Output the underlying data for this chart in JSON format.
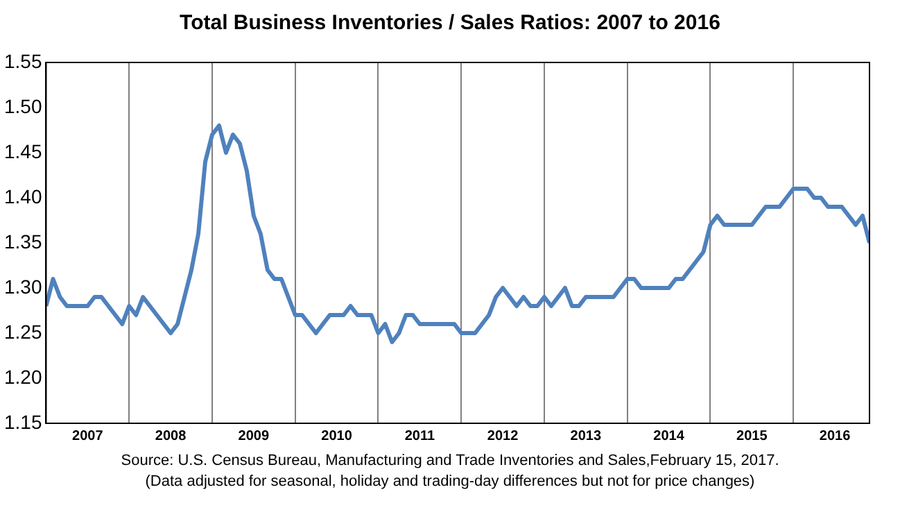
{
  "chart_data": {
    "type": "line",
    "title": "Total Business Inventories / Sales Ratios: 2007 to 2016",
    "annotations": [
      "Source: U.S. Census Bureau, Manufacturing and Trade Inventories and Sales,February 15, 2017.",
      "(Data adjusted for seasonal, holiday and trading-day differences but not for price changes)"
    ],
    "x": [
      "2007-01",
      "2007-02",
      "2007-03",
      "2007-04",
      "2007-05",
      "2007-06",
      "2007-07",
      "2007-08",
      "2007-09",
      "2007-10",
      "2007-11",
      "2007-12",
      "2008-01",
      "2008-02",
      "2008-03",
      "2008-04",
      "2008-05",
      "2008-06",
      "2008-07",
      "2008-08",
      "2008-09",
      "2008-10",
      "2008-11",
      "2008-12",
      "2009-01",
      "2009-02",
      "2009-03",
      "2009-04",
      "2009-05",
      "2009-06",
      "2009-07",
      "2009-08",
      "2009-09",
      "2009-10",
      "2009-11",
      "2009-12",
      "2010-01",
      "2010-02",
      "2010-03",
      "2010-04",
      "2010-05",
      "2010-06",
      "2010-07",
      "2010-08",
      "2010-09",
      "2010-10",
      "2010-11",
      "2010-12",
      "2011-01",
      "2011-02",
      "2011-03",
      "2011-04",
      "2011-05",
      "2011-06",
      "2011-07",
      "2011-08",
      "2011-09",
      "2011-10",
      "2011-11",
      "2011-12",
      "2012-01",
      "2012-02",
      "2012-03",
      "2012-04",
      "2012-05",
      "2012-06",
      "2012-07",
      "2012-08",
      "2012-09",
      "2012-10",
      "2012-11",
      "2012-12",
      "2013-01",
      "2013-02",
      "2013-03",
      "2013-04",
      "2013-05",
      "2013-06",
      "2013-07",
      "2013-08",
      "2013-09",
      "2013-10",
      "2013-11",
      "2013-12",
      "2014-01",
      "2014-02",
      "2014-03",
      "2014-04",
      "2014-05",
      "2014-06",
      "2014-07",
      "2014-08",
      "2014-09",
      "2014-10",
      "2014-11",
      "2014-12",
      "2015-01",
      "2015-02",
      "2015-03",
      "2015-04",
      "2015-05",
      "2015-06",
      "2015-07",
      "2015-08",
      "2015-09",
      "2015-10",
      "2015-11",
      "2015-12",
      "2016-01",
      "2016-02",
      "2016-03",
      "2016-04",
      "2016-05",
      "2016-06",
      "2016-07",
      "2016-08",
      "2016-09",
      "2016-10",
      "2016-11",
      "2016-12"
    ],
    "series": [
      {
        "color": "#4f81bd",
        "values": [
          1.28,
          1.31,
          1.29,
          1.28,
          1.28,
          1.28,
          1.28,
          1.29,
          1.29,
          1.28,
          1.27,
          1.26,
          1.28,
          1.27,
          1.29,
          1.28,
          1.27,
          1.26,
          1.25,
          1.26,
          1.29,
          1.32,
          1.36,
          1.44,
          1.47,
          1.48,
          1.45,
          1.47,
          1.46,
          1.43,
          1.38,
          1.36,
          1.32,
          1.31,
          1.31,
          1.29,
          1.27,
          1.27,
          1.26,
          1.25,
          1.26,
          1.27,
          1.27,
          1.27,
          1.28,
          1.27,
          1.27,
          1.27,
          1.25,
          1.26,
          1.24,
          1.25,
          1.27,
          1.27,
          1.26,
          1.26,
          1.26,
          1.26,
          1.26,
          1.26,
          1.25,
          1.25,
          1.25,
          1.26,
          1.27,
          1.29,
          1.3,
          1.29,
          1.28,
          1.29,
          1.28,
          1.28,
          1.29,
          1.28,
          1.29,
          1.3,
          1.28,
          1.28,
          1.29,
          1.29,
          1.29,
          1.29,
          1.29,
          1.3,
          1.31,
          1.31,
          1.3,
          1.3,
          1.3,
          1.3,
          1.3,
          1.31,
          1.31,
          1.32,
          1.33,
          1.34,
          1.37,
          1.38,
          1.37,
          1.37,
          1.37,
          1.37,
          1.37,
          1.38,
          1.39,
          1.39,
          1.39,
          1.4,
          1.41,
          1.41,
          1.41,
          1.4,
          1.4,
          1.39,
          1.39,
          1.39,
          1.38,
          1.37,
          1.38,
          1.35
        ]
      }
    ],
    "xlim": [
      "2007-01",
      "2016-12"
    ],
    "xticks": [
      {
        "value": "2007-07",
        "label": "2007"
      },
      {
        "value": "2008-01",
        "label": null
      },
      {
        "value": "2008-07",
        "label": "2008"
      },
      {
        "value": "2009-01",
        "label": null
      },
      {
        "value": "2009-07",
        "label": "2009"
      },
      {
        "value": "2010-01",
        "label": null
      },
      {
        "value": "2010-07",
        "label": "2010"
      },
      {
        "value": "2011-01",
        "label": null
      },
      {
        "value": "2011-07",
        "label": "2011"
      },
      {
        "value": "2012-01",
        "label": null
      },
      {
        "value": "2012-07",
        "label": "2012"
      },
      {
        "value": "2013-01",
        "label": null
      },
      {
        "value": "2013-07",
        "label": "2013"
      },
      {
        "value": "2014-01",
        "label": null
      },
      {
        "value": "2014-07",
        "label": "2014"
      },
      {
        "value": "2015-01",
        "label": null
      },
      {
        "value": "2015-07",
        "label": "2015"
      },
      {
        "value": "2016-01",
        "label": null
      },
      {
        "value": "2016-07",
        "label": "2016"
      }
    ],
    "ylim": [
      1.15,
      1.55
    ],
    "yticks": [
      {
        "value": 1.15,
        "label": "1.15"
      },
      {
        "value": 1.2,
        "label": "1.20"
      },
      {
        "value": 1.25,
        "label": "1.25"
      },
      {
        "value": 1.3,
        "label": "1.30"
      },
      {
        "value": 1.35,
        "label": "1.35"
      },
      {
        "value": 1.4,
        "label": "1.40"
      },
      {
        "value": 1.45,
        "label": "1.45"
      },
      {
        "value": 1.5,
        "label": "1.50"
      },
      {
        "value": 1.55,
        "label": "1.55"
      }
    ],
    "grid": "x",
    "legend": false,
    "marker": "none",
    "line_style": "solid"
  }
}
